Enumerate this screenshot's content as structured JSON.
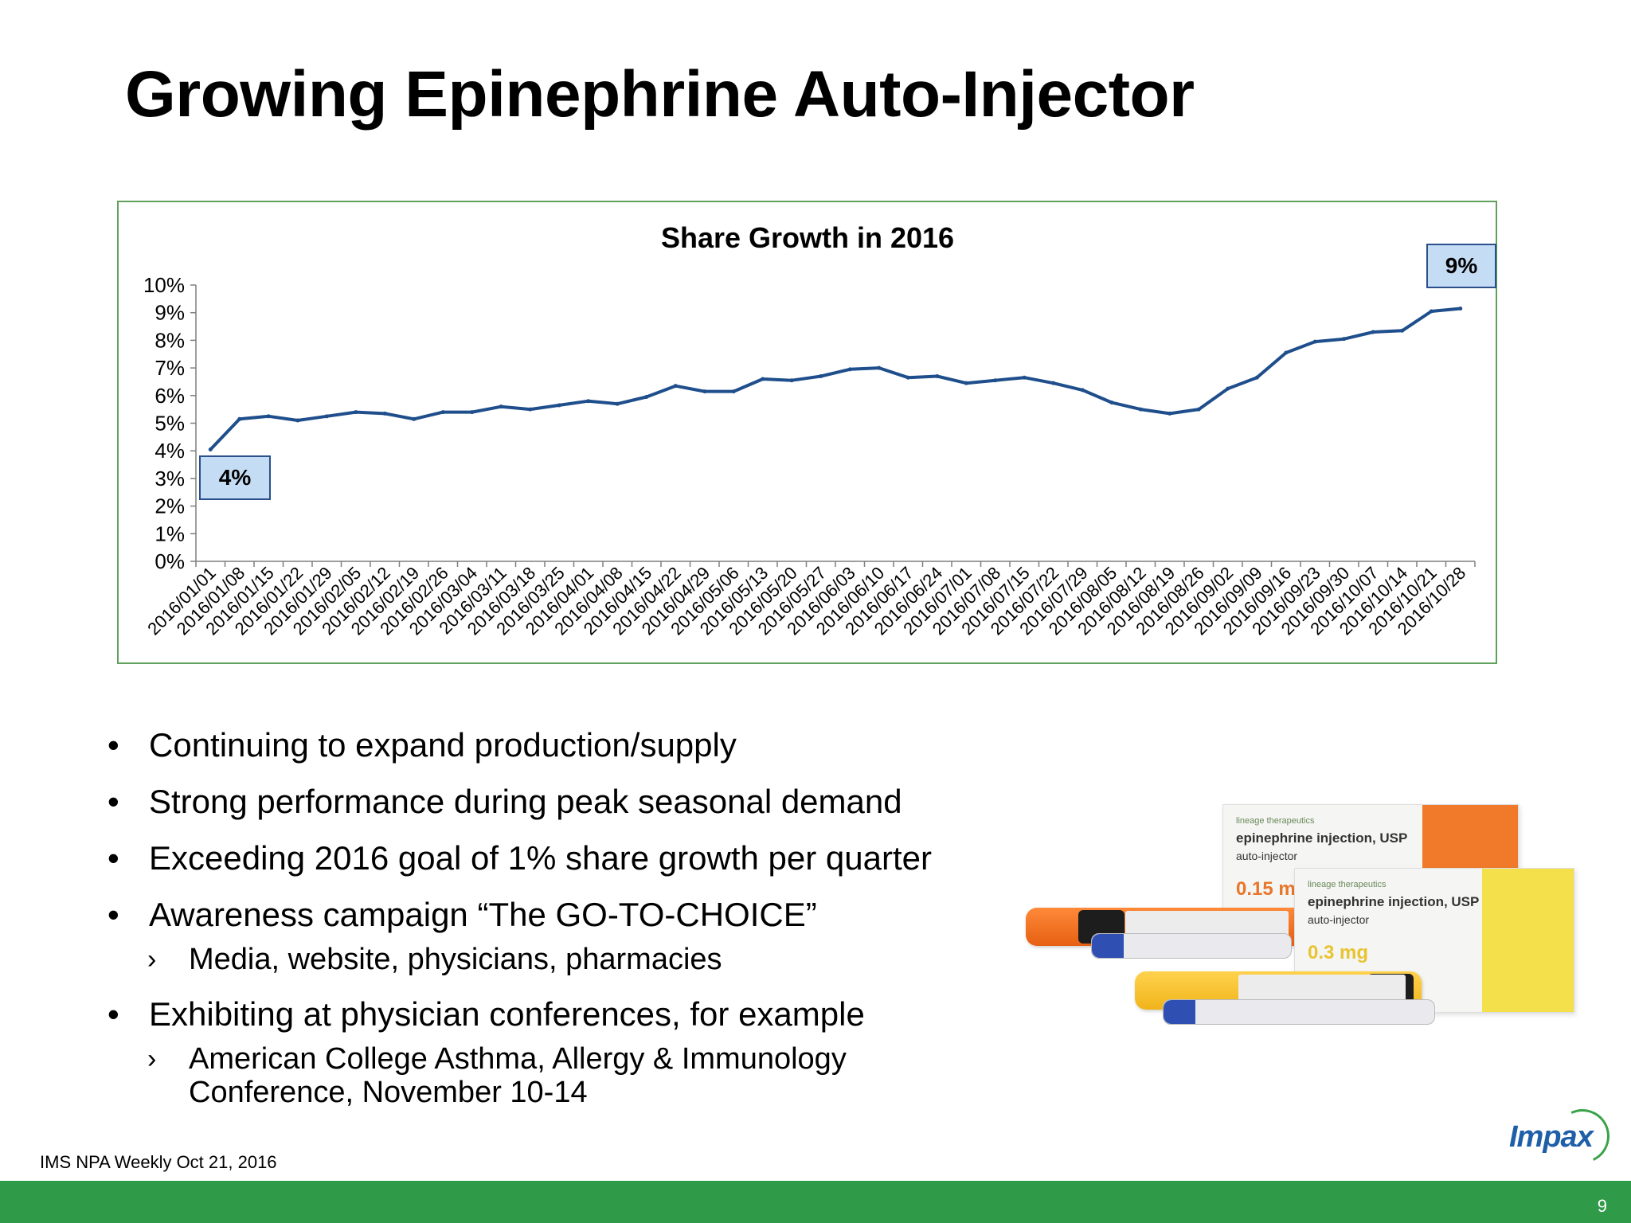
{
  "slide": {
    "title": "Growing Epinephrine Auto-Injector",
    "source": "IMS NPA Weekly Oct 21, 2016",
    "page_number": "9"
  },
  "chart_data": {
    "type": "line",
    "title": "Share Growth in 2016",
    "xlabel": "",
    "ylabel": "",
    "ylim": [
      0,
      10
    ],
    "y_tick_labels": [
      "0%",
      "1%",
      "2%",
      "3%",
      "4%",
      "5%",
      "6%",
      "7%",
      "8%",
      "9%",
      "10%"
    ],
    "grid": false,
    "legend": "none",
    "x": [
      "2016/01/01",
      "2016/01/08",
      "2016/01/15",
      "2016/01/22",
      "2016/01/29",
      "2016/02/05",
      "2016/02/12",
      "2016/02/19",
      "2016/02/26",
      "2016/03/04",
      "2016/03/11",
      "2016/03/18",
      "2016/03/25",
      "2016/04/01",
      "2016/04/08",
      "2016/04/15",
      "2016/04/22",
      "2016/04/29",
      "2016/05/06",
      "2016/05/13",
      "2016/05/20",
      "2016/05/27",
      "2016/06/03",
      "2016/06/10",
      "2016/06/17",
      "2016/06/24",
      "2016/07/01",
      "2016/07/08",
      "2016/07/15",
      "2016/07/22",
      "2016/07/29",
      "2016/08/05",
      "2016/08/12",
      "2016/08/19",
      "2016/08/26",
      "2016/09/02",
      "2016/09/09",
      "2016/09/16",
      "2016/09/23",
      "2016/09/30",
      "2016/10/07",
      "2016/10/14",
      "2016/10/21",
      "2016/10/28"
    ],
    "series": [
      {
        "values": [
          4.05,
          5.15,
          5.25,
          5.1,
          5.25,
          5.4,
          5.35,
          5.15,
          5.4,
          5.4,
          5.6,
          5.5,
          5.65,
          5.8,
          5.7,
          5.95,
          6.35,
          6.15,
          6.15,
          6.6,
          6.55,
          6.7,
          6.95,
          7.0,
          6.65,
          6.7,
          6.45,
          6.55,
          6.65,
          6.45,
          6.2,
          5.75,
          5.5,
          5.35,
          5.5,
          6.25,
          6.65,
          7.55,
          7.95,
          8.05,
          8.3,
          8.35,
          9.05,
          9.15
        ],
        "color": "#1f4e8c"
      }
    ],
    "annotations": [
      {
        "text": "4%",
        "at": "2016/01/01"
      },
      {
        "text": "9%",
        "at": "2016/10/28"
      }
    ]
  },
  "bullets": [
    {
      "text": "Continuing to expand production/supply",
      "subs": []
    },
    {
      "text": "Strong performance during peak seasonal demand",
      "subs": []
    },
    {
      "text": "Exceeding 2016 goal of 1% share growth per quarter",
      "subs": []
    },
    {
      "text": "Awareness campaign “The GO-TO-CHOICE”",
      "subs": [
        "Media, website, physicians, pharmacies"
      ]
    },
    {
      "text": "Exhibiting at physician conferences, for example",
      "subs": [
        "American College Asthma, Allergy & Immunology",
        "Conference, November 10-14"
      ]
    }
  ],
  "bullet_mark": "•",
  "sub_mark": "›",
  "product": {
    "brand": "lineage therapeutics",
    "name": "epinephrine injection, USP",
    "form": "auto-injector",
    "dose_low": "0.15 mg",
    "dose_high": "0.3 mg"
  },
  "logo": {
    "text": "Impax",
    "ring_color": "#3aa34a",
    "text_color": "#1f5fa8"
  },
  "colors": {
    "footer_bar": "#2f9a48",
    "chart_border": "#5fa05a",
    "callout_fill": "#c5dcf5",
    "line": "#1f4e8c"
  }
}
